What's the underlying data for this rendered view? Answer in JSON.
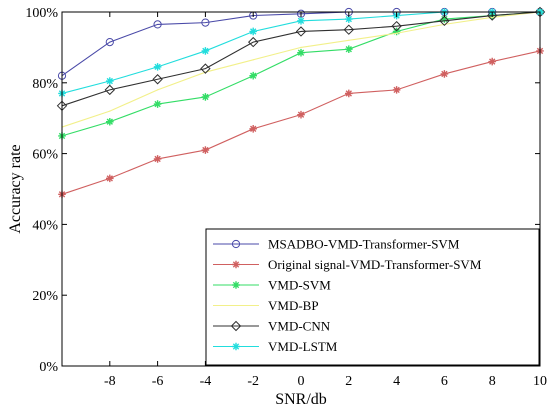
{
  "chart_data": {
    "type": "line",
    "title": "",
    "xlabel": "SNR/db",
    "ylabel": "Accuracy rate",
    "x": [
      -10,
      -8,
      -6,
      -4,
      -2,
      0,
      2,
      4,
      6,
      8,
      10
    ],
    "x_ticks": [
      -8,
      -6,
      -4,
      -2,
      0,
      2,
      4,
      6,
      8,
      10
    ],
    "xlim": [
      -10,
      10
    ],
    "ylim": [
      0,
      100
    ],
    "y_ticks": [
      0,
      20,
      40,
      60,
      80,
      100
    ],
    "y_tick_labels": [
      "0%",
      "20%",
      "40%",
      "60%",
      "80%",
      "100%"
    ],
    "grid": false,
    "legend_position": "bottom-right",
    "series": [
      {
        "name": "MSADBO-VMD-Transformer-SVM",
        "color": "#4a4aa8",
        "marker": "circle",
        "values": [
          82,
          91.5,
          96.5,
          97,
          99,
          99.5,
          100,
          100,
          100,
          100,
          100
        ]
      },
      {
        "name": "Original signal-VMD-Transformer-SVM",
        "color": "#d06060",
        "marker": "star",
        "values": [
          48.5,
          53,
          58.5,
          61,
          67,
          71,
          77,
          78,
          82.5,
          86,
          89
        ]
      },
      {
        "name": "VMD-SVM",
        "color": "#33dd66",
        "marker": "star",
        "values": [
          65,
          69,
          74,
          76,
          82,
          88.5,
          89.5,
          94.5,
          98,
          99,
          100
        ]
      },
      {
        "name": "VMD-BP",
        "color": "#f2f08a",
        "marker": "none",
        "values": [
          67.5,
          72,
          78,
          83,
          86.5,
          90,
          92,
          94,
          96.5,
          98.5,
          100
        ]
      },
      {
        "name": "VMD-CNN",
        "color": "#303030",
        "marker": "diamond",
        "values": [
          73.5,
          78,
          81,
          84,
          91.5,
          94.5,
          95,
          96,
          97.5,
          99,
          100
        ]
      },
      {
        "name": "VMD-LSTM",
        "color": "#22dddd",
        "marker": "star",
        "values": [
          77,
          80.5,
          84.5,
          89,
          94.5,
          97.5,
          98,
          99,
          100,
          100,
          100
        ]
      }
    ]
  }
}
